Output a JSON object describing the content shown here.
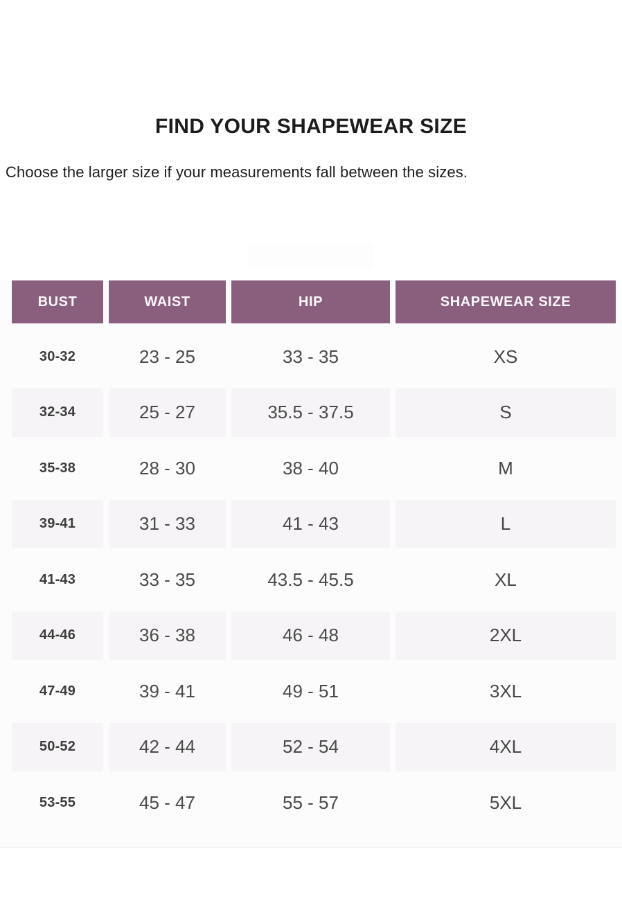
{
  "page": {
    "title": "FIND YOUR SHAPEWEAR SIZE",
    "subtitle": "Choose the larger size if your measurements fall between the sizes."
  },
  "colors": {
    "header_bg": "#8a5f7e",
    "header_text": "#faf7f9",
    "row_alt_bg": "#f6f4f6",
    "table_bg": "#fdfcfd",
    "data_text": "#4a4a4a",
    "bust_text": "#3d3d3d",
    "title_text": "#1c1c1c"
  },
  "table": {
    "columns": [
      "BUST",
      "WAIST",
      "HIP",
      "SHAPEWEAR SIZE"
    ],
    "rows": [
      {
        "bust": "30-32",
        "waist": "23 - 25",
        "hip": "33 - 35",
        "size": "XS"
      },
      {
        "bust": "32-34",
        "waist": "25 - 27",
        "hip": "35.5 - 37.5",
        "size": "S"
      },
      {
        "bust": "35-38",
        "waist": "28 - 30",
        "hip": "38 - 40",
        "size": "M"
      },
      {
        "bust": "39-41",
        "waist": "31 - 33",
        "hip": "41 - 43",
        "size": "L"
      },
      {
        "bust": "41-43",
        "waist": "33 - 35",
        "hip": "43.5 - 45.5",
        "size": "XL"
      },
      {
        "bust": "44-46",
        "waist": "36 - 38",
        "hip": "46 - 48",
        "size": "2XL"
      },
      {
        "bust": "47-49",
        "waist": "39 - 41",
        "hip": "49 - 51",
        "size": "3XL"
      },
      {
        "bust": "50-52",
        "waist": "42 - 44",
        "hip": "52 - 54",
        "size": "4XL"
      },
      {
        "bust": "53-55",
        "waist": "45 - 47",
        "hip": "55 - 57",
        "size": "5XL"
      }
    ]
  }
}
